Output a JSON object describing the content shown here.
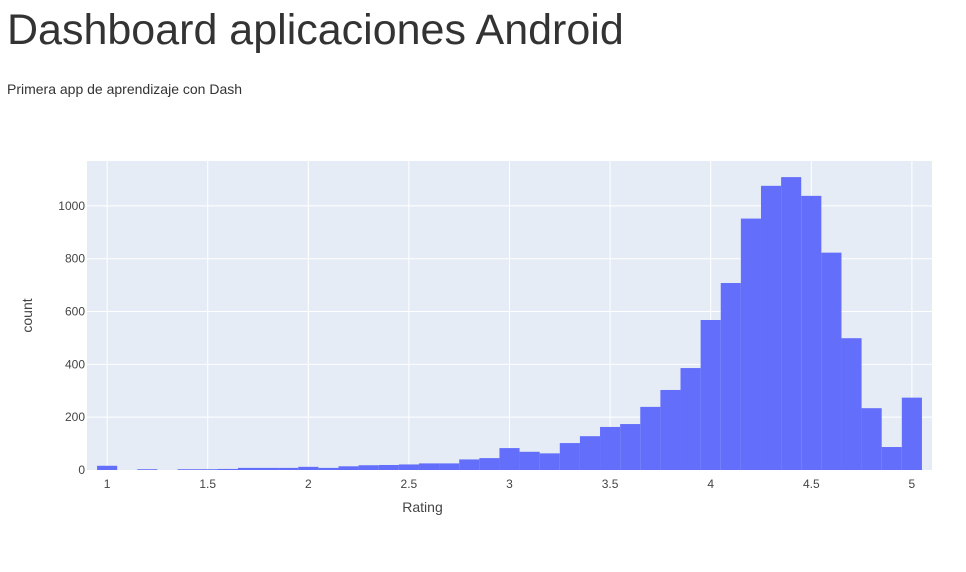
{
  "page": {
    "title": "Dashboard aplicaciones Android",
    "subtitle": "Primera app de aprendizaje con Dash"
  },
  "colors": {
    "bar": "#636efa",
    "plot_bg": "#e5ecf6",
    "grid": "#ffffff",
    "tick_text": "#444444",
    "axis_title": "#444444"
  },
  "chart_data": {
    "type": "histogram",
    "xlabel": "Rating",
    "ylabel": "count",
    "xlim": [
      0.9,
      5.1
    ],
    "ylim": [
      0,
      1170
    ],
    "xticks": [
      1,
      1.5,
      2,
      2.5,
      3,
      3.5,
      4,
      4.5,
      5
    ],
    "xtick_labels": [
      "1",
      "1.5",
      "2",
      "2.5",
      "3",
      "3.5",
      "4",
      "4.5",
      "5"
    ],
    "yticks": [
      0,
      200,
      400,
      600,
      800,
      1000
    ],
    "ytick_labels": [
      "0",
      "200",
      "400",
      "600",
      "800",
      "1000"
    ],
    "grid": true,
    "bin_size": 0.1,
    "bins": [
      {
        "x0": 0.95,
        "x1": 1.05,
        "count": 16
      },
      {
        "x0": 1.15,
        "x1": 1.25,
        "count": 3
      },
      {
        "x0": 1.35,
        "x1": 1.45,
        "count": 3
      },
      {
        "x0": 1.45,
        "x1": 1.55,
        "count": 3
      },
      {
        "x0": 1.55,
        "x1": 1.65,
        "count": 4
      },
      {
        "x0": 1.65,
        "x1": 1.75,
        "count": 8
      },
      {
        "x0": 1.75,
        "x1": 1.85,
        "count": 8
      },
      {
        "x0": 1.85,
        "x1": 1.95,
        "count": 8
      },
      {
        "x0": 1.95,
        "x1": 2.05,
        "count": 12
      },
      {
        "x0": 2.05,
        "x1": 2.15,
        "count": 8
      },
      {
        "x0": 2.15,
        "x1": 2.25,
        "count": 14
      },
      {
        "x0": 2.25,
        "x1": 2.35,
        "count": 18
      },
      {
        "x0": 2.35,
        "x1": 2.45,
        "count": 19
      },
      {
        "x0": 2.45,
        "x1": 2.55,
        "count": 21
      },
      {
        "x0": 2.55,
        "x1": 2.65,
        "count": 25
      },
      {
        "x0": 2.65,
        "x1": 2.75,
        "count": 25
      },
      {
        "x0": 2.75,
        "x1": 2.85,
        "count": 40
      },
      {
        "x0": 2.85,
        "x1": 2.95,
        "count": 45
      },
      {
        "x0": 2.95,
        "x1": 3.05,
        "count": 83
      },
      {
        "x0": 3.05,
        "x1": 3.15,
        "count": 69
      },
      {
        "x0": 3.15,
        "x1": 3.25,
        "count": 63
      },
      {
        "x0": 3.25,
        "x1": 3.35,
        "count": 102
      },
      {
        "x0": 3.35,
        "x1": 3.45,
        "count": 128
      },
      {
        "x0": 3.45,
        "x1": 3.55,
        "count": 163
      },
      {
        "x0": 3.55,
        "x1": 3.65,
        "count": 174
      },
      {
        "x0": 3.65,
        "x1": 3.75,
        "count": 239
      },
      {
        "x0": 3.75,
        "x1": 3.85,
        "count": 303
      },
      {
        "x0": 3.85,
        "x1": 3.95,
        "count": 386
      },
      {
        "x0": 3.95,
        "x1": 4.05,
        "count": 568
      },
      {
        "x0": 4.05,
        "x1": 4.15,
        "count": 708
      },
      {
        "x0": 4.15,
        "x1": 4.25,
        "count": 952
      },
      {
        "x0": 4.25,
        "x1": 4.35,
        "count": 1076
      },
      {
        "x0": 4.35,
        "x1": 4.45,
        "count": 1109
      },
      {
        "x0": 4.45,
        "x1": 4.55,
        "count": 1038
      },
      {
        "x0": 4.55,
        "x1": 4.65,
        "count": 823
      },
      {
        "x0": 4.65,
        "x1": 4.75,
        "count": 499
      },
      {
        "x0": 4.75,
        "x1": 4.85,
        "count": 234
      },
      {
        "x0": 4.85,
        "x1": 4.95,
        "count": 87
      },
      {
        "x0": 4.95,
        "x1": 5.05,
        "count": 274
      }
    ]
  }
}
